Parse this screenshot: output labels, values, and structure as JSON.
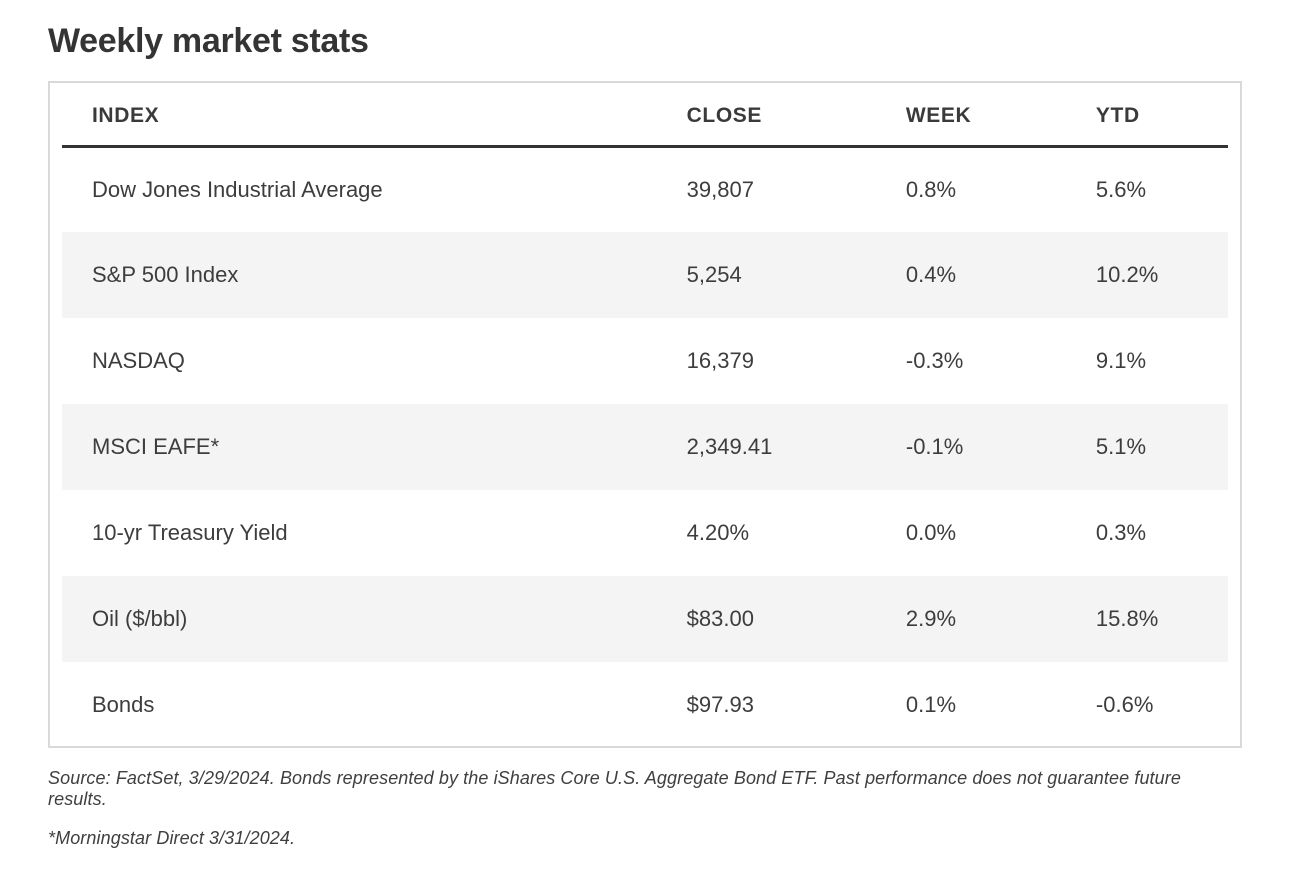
{
  "title": "Weekly market stats",
  "chart_data": {
    "type": "table",
    "title": "Weekly market stats",
    "columns": [
      "INDEX",
      "CLOSE",
      "WEEK",
      "YTD"
    ],
    "rows": [
      [
        "Dow Jones Industrial Average",
        "39,807",
        "0.8%",
        "5.6%"
      ],
      [
        "S&P 500 Index",
        "5,254",
        "0.4%",
        "10.2%"
      ],
      [
        "NASDAQ",
        "16,379",
        "-0.3%",
        "9.1%"
      ],
      [
        "MSCI EAFE*",
        "2,349.41",
        "-0.1%",
        "5.1%"
      ],
      [
        "10-yr Treasury Yield",
        "4.20%",
        "0.0%",
        "0.3%"
      ],
      [
        "Oil ($/bbl)",
        "$83.00",
        "2.9%",
        "15.8%"
      ],
      [
        "Bonds",
        "$97.93",
        "0.1%",
        "-0.6%"
      ]
    ],
    "layout": {
      "striped_rows": "even rows shaded",
      "header_rule": "heavy dark line under header",
      "alignment": "all columns left-aligned"
    }
  },
  "footnotes": {
    "line1": "Source: FactSet, 3/29/2024. Bonds represented by the iShares Core U.S. Aggregate Bond ETF. Past performance does not guarantee future results.",
    "line2": "*Morningstar Direct 3/31/2024."
  },
  "colors": {
    "text": "#3d3d3d",
    "stripe": "#f4f4f4",
    "border": "#d9d9d9",
    "header_rule": "#333333"
  }
}
